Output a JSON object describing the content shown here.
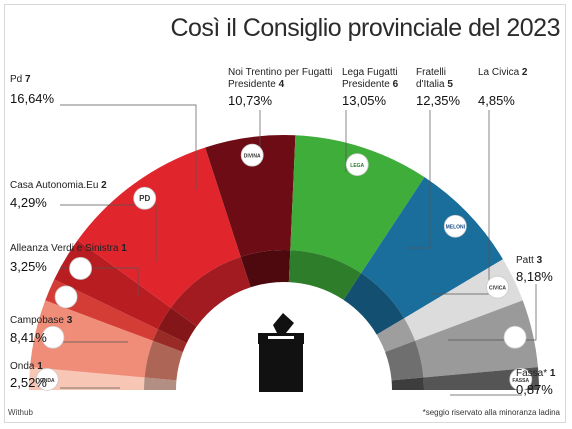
{
  "chart_data": {
    "type": "pie",
    "subtype": "parliament-semicircle",
    "title": "Così il Consiglio provinciale del 2023",
    "source": "Withub",
    "footnote": "*seggio riservato alla minoranza ladina",
    "series": [
      {
        "name": "Onda",
        "seats": 1,
        "percent": "2,52%",
        "color": "#f7c6b4"
      },
      {
        "name": "Campobase",
        "seats": 3,
        "percent": "8,41%",
        "color": "#f08d78"
      },
      {
        "name": "Alleanza Verdi e Sinistra",
        "seats": 1,
        "percent": "3,25%",
        "color": "#d43c36"
      },
      {
        "name": "Casa Autonomia.Eu",
        "seats": 2,
        "percent": "4,29%",
        "color": "#b81d22"
      },
      {
        "name": "Pd",
        "seats": 7,
        "percent": "16,64%",
        "color": "#e0262c"
      },
      {
        "name": "Noi Trentino per Fugatti Presidente",
        "seats": 4,
        "percent": "10,73%",
        "color": "#6d0c14"
      },
      {
        "name": "Lega Fugatti Presidente",
        "seats": 6,
        "percent": "13,05%",
        "color": "#3fad3a"
      },
      {
        "name": "Fratelli d'Italia",
        "seats": 5,
        "percent": "12,35%",
        "color": "#1a6e9c"
      },
      {
        "name": "La Civica",
        "seats": 2,
        "percent": "4,85%",
        "color": "#dcdcdc"
      },
      {
        "name": "Patt",
        "seats": 3,
        "percent": "8,18%",
        "color": "#9a9a9a"
      },
      {
        "name": "Fassa*",
        "seats": 1,
        "percent": "0,87%",
        "color": "#555555"
      }
    ]
  },
  "labels": {
    "pd": {
      "name": "Pd",
      "seats": "7",
      "pct": "16,64%"
    },
    "casa": {
      "name": "Casa Autonomia.Eu",
      "seats": "2",
      "pct": "4,29%"
    },
    "avs": {
      "name": "Alleanza Verdi e Sinistra",
      "seats": "1",
      "pct": "3,25%"
    },
    "campobase": {
      "name": "Campobase",
      "seats": "3",
      "pct": "8,41%"
    },
    "onda": {
      "name": "Onda",
      "seats": "1",
      "pct": "2,52%"
    },
    "noi": {
      "name1": "Noi Trentino per Fugatti",
      "name2": "Presidente",
      "seats": "4",
      "pct": "10,73%"
    },
    "lega": {
      "name1": "Lega Fugatti",
      "name2": "Presidente",
      "seats": "6",
      "pct": "13,05%"
    },
    "fdi": {
      "name1": "Fratelli",
      "name2": "d'Italia",
      "seats": "5",
      "pct": "12,35%"
    },
    "civica": {
      "name": "La Civica",
      "seats": "2",
      "pct": "4,85%"
    },
    "patt": {
      "name": "Patt",
      "seats": "3",
      "pct": "8,18%"
    },
    "fassa": {
      "name": "Fassa*",
      "seats": "1",
      "pct": "0,87%"
    }
  },
  "logos": {
    "pd": "PD",
    "noi": "DIVINA",
    "lega": "LEGA",
    "fdi": "MELONI",
    "civica": "CIVICA",
    "fassa": "FASSA",
    "onda": "ONDA"
  },
  "icons": {
    "center": "ballot-box-icon"
  }
}
